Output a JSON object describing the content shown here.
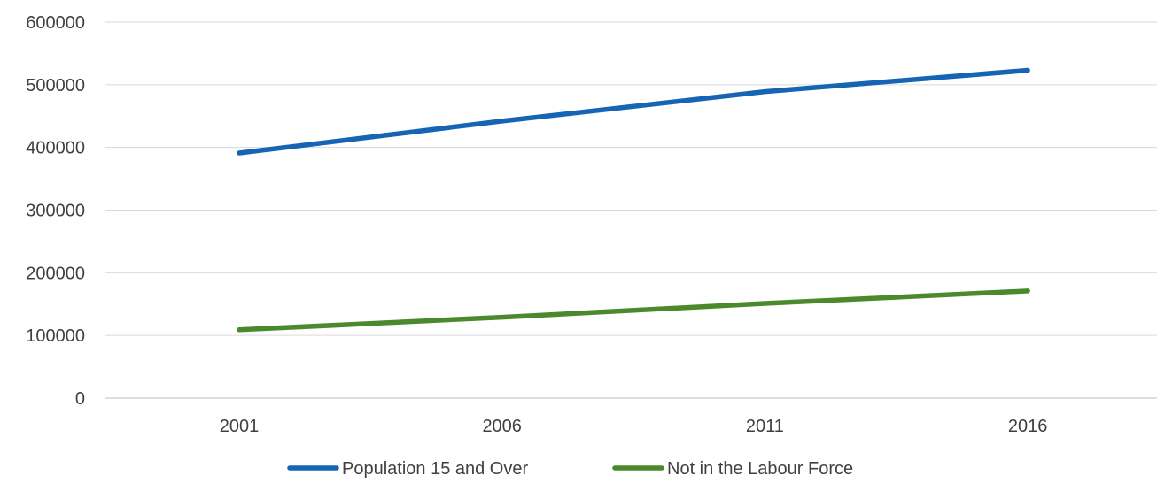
{
  "chart_data": {
    "type": "line",
    "title": "",
    "xlabel": "",
    "ylabel": "",
    "categories": [
      "2001",
      "2006",
      "2011",
      "2016"
    ],
    "ylim": [
      0,
      600000
    ],
    "yticks": [
      0,
      100000,
      200000,
      300000,
      400000,
      500000,
      600000
    ],
    "ytick_labels": [
      "0",
      "100000",
      "200000",
      "300000",
      "400000",
      "500000",
      "600000"
    ],
    "grid": "horizontal",
    "legend_position": "bottom",
    "series": [
      {
        "name": "Population 15 and Over",
        "color": "#1565b4",
        "values": [
          391000,
          442000,
          489000,
          523000
        ]
      },
      {
        "name": "Not in the Labour Force",
        "color": "#4a8a2c",
        "values": [
          109000,
          129000,
          151000,
          171000
        ]
      }
    ]
  }
}
